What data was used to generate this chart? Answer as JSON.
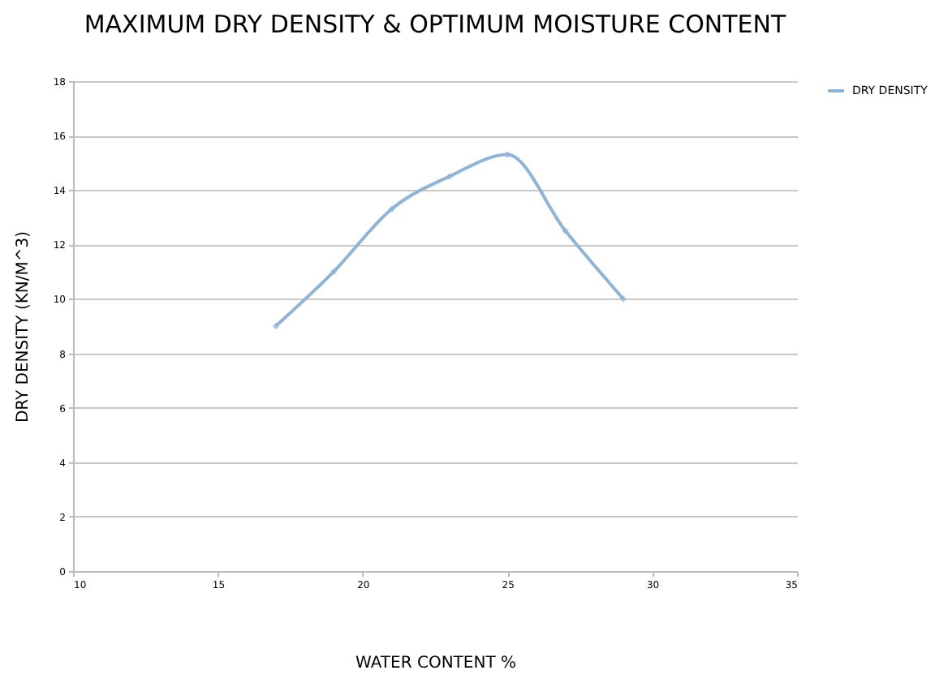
{
  "chart_data": {
    "type": "line",
    "title": "MAXIMUM DRY DENSITY  & OPTIMUM MOISTURE CONTENT",
    "xlabel": "WATER CONTENT %",
    "ylabel": "DRY DENSITY (KN/M^3)",
    "x": [
      17,
      19,
      21,
      23,
      25,
      27,
      29
    ],
    "series": [
      {
        "name": "DRY DENSITY",
        "color": "#8eb4d8",
        "values": [
          9,
          11,
          13.3,
          14.5,
          15.3,
          12.5,
          10
        ]
      }
    ],
    "xlim": [
      10,
      35
    ],
    "xticks": [
      10,
      15,
      20,
      25,
      30,
      35
    ],
    "ylim": [
      0,
      18
    ],
    "yticks": [
      0,
      2,
      4,
      6,
      8,
      10,
      12,
      14,
      16,
      18
    ],
    "grid": "y",
    "legend": "right",
    "marker": "diamond",
    "line_style": "solid"
  }
}
